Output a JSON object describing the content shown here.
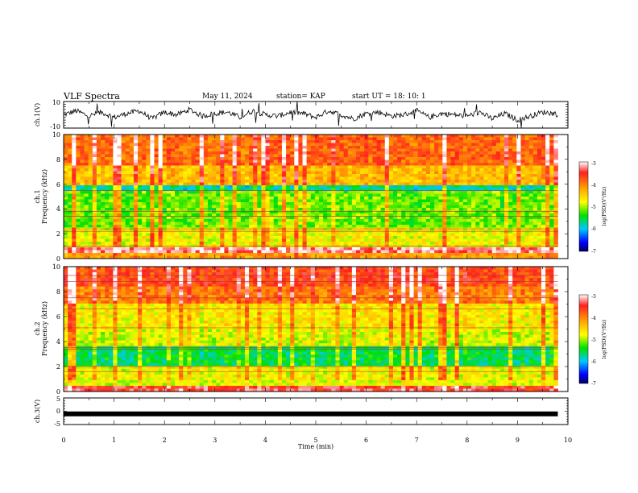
{
  "header": {
    "title": "VLF Spectra",
    "date": "May 11, 2024",
    "station": "station= KAP",
    "start": "start  UT  =   18: 10: 1"
  },
  "chart_data": [
    {
      "type": "line",
      "ylabel": "ch.1(V)",
      "ylim": [
        -10,
        10
      ],
      "y_ticks": [
        "10",
        "-10"
      ],
      "xlim": [
        0,
        10
      ],
      "x": [
        0,
        0.25,
        0.5,
        0.75,
        1,
        1.25,
        1.5,
        1.75,
        2,
        2.25,
        2.5,
        2.75,
        3,
        3.25,
        3.5,
        3.75,
        4,
        4.25,
        4.5,
        4.75,
        5,
        5.25,
        5.5,
        5.75,
        6,
        6.25,
        6.5,
        6.75,
        7,
        7.25,
        7.5,
        7.75,
        8,
        8.25,
        8.5,
        8.75,
        9,
        9.25,
        9.5,
        9.75,
        9.8
      ],
      "y": [
        0,
        3,
        -1,
        2,
        -2,
        1,
        3,
        -3,
        2,
        0,
        4,
        -1,
        1,
        2,
        -2,
        3,
        0,
        -1,
        2,
        1,
        -2,
        3,
        0,
        -3,
        1,
        2,
        -1,
        0,
        3,
        -2,
        1,
        0,
        -1,
        2,
        -3,
        1,
        -4,
        -1,
        2,
        1,
        0
      ]
    },
    {
      "type": "heatmap",
      "ylabel": "ch.1",
      "ylabel2": "Frequency (kHz)",
      "ylim": [
        0,
        10
      ],
      "y_ticks": [
        "0",
        "2",
        "4",
        "6",
        "8",
        "10"
      ],
      "xlim": [
        0,
        10
      ],
      "data_extent_min": 9.8,
      "colorbar": {
        "label": "log(PSD)(V²/Hz)",
        "range": [
          -7,
          -3
        ],
        "ticks": [
          "-3",
          "-4",
          "-5",
          "-6",
          "-7"
        ]
      }
    },
    {
      "type": "heatmap",
      "ylabel": "ch.2",
      "ylabel2": "Frequency (kHz)",
      "ylim": [
        0,
        10
      ],
      "y_ticks": [
        "0",
        "2",
        "4",
        "6",
        "8",
        "10"
      ],
      "xlim": [
        0,
        10
      ],
      "data_extent_min": 9.8,
      "colorbar": {
        "label": "log(PSD)(V²/Hz)",
        "range": [
          -7,
          -3
        ],
        "ticks": [
          "-3",
          "-4",
          "-5",
          "-6",
          "-7"
        ]
      }
    },
    {
      "type": "line",
      "ylabel": "ch.3(V)",
      "ylim": [
        -5,
        5
      ],
      "y_ticks": [
        "5",
        "0",
        "-5"
      ],
      "xlim": [
        0,
        10
      ],
      "xlabel": "Time  (min)",
      "x_ticks": [
        "0",
        "1",
        "2",
        "3",
        "4",
        "5",
        "6",
        "7",
        "8",
        "9",
        "10"
      ],
      "x": [
        0,
        9.8
      ],
      "y": [
        -1,
        -1
      ]
    }
  ]
}
